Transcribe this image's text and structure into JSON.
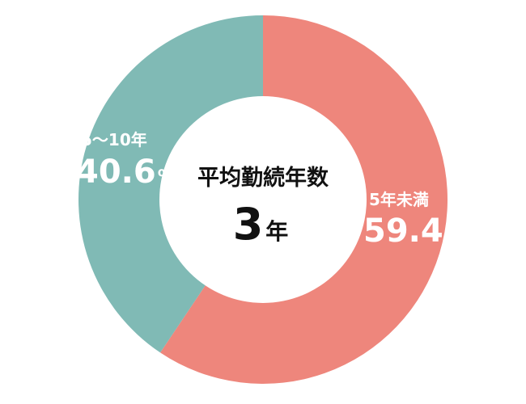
{
  "chart_data": {
    "type": "pie",
    "style": "donut",
    "center_label": "平均勤続年数",
    "center_value": "3",
    "center_unit": "年",
    "slices": [
      {
        "label": "5年未満",
        "value": 59.4,
        "value_text": "59.4",
        "unit": "%",
        "color": "#ee867c"
      },
      {
        "label": "5～10年",
        "value": 40.6,
        "value_text": "40.6",
        "unit": "%",
        "color": "#80bab5"
      }
    ]
  }
}
